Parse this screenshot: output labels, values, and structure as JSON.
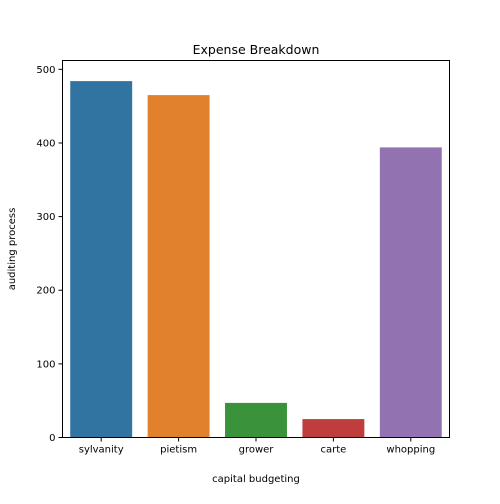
{
  "chart_data": {
    "type": "bar",
    "title": "Expense Breakdown",
    "xlabel": "capital budgeting",
    "ylabel": "auditing process",
    "categories": [
      "sylvanity",
      "pietism",
      "grower",
      "carte",
      "whopping"
    ],
    "values": [
      484,
      465,
      47,
      25,
      394
    ],
    "colors": [
      "#3274a1",
      "#e1812c",
      "#3a923a",
      "#c03d3e",
      "#9372b2"
    ],
    "ylim": [
      0,
      512
    ],
    "yticks": [
      0,
      100,
      200,
      300,
      400,
      500
    ],
    "grid": false,
    "legend": "none"
  }
}
